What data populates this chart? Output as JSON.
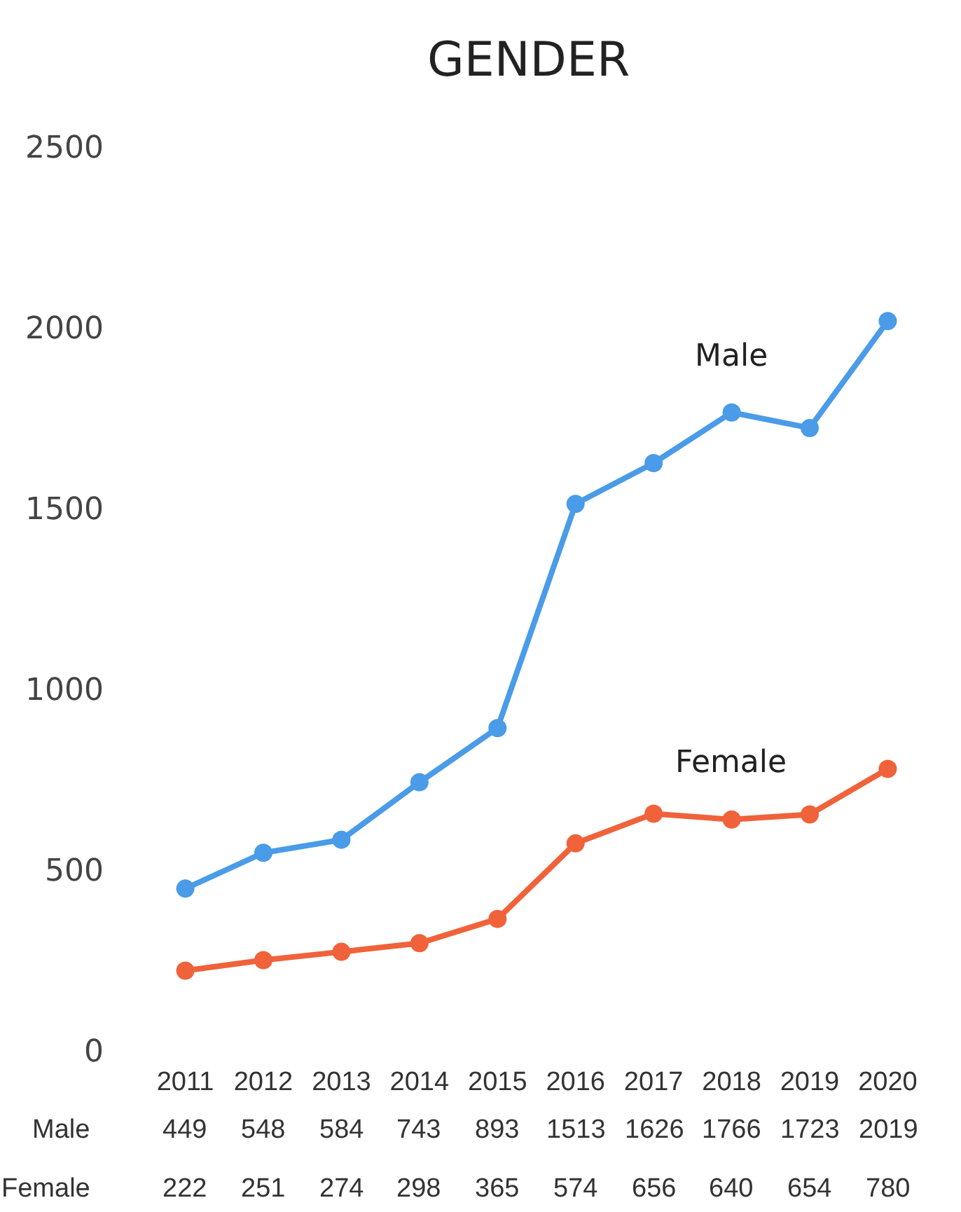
{
  "chart_data": {
    "type": "line",
    "title": "GENDER",
    "categories": [
      "2011",
      "2012",
      "2013",
      "2014",
      "2015",
      "2016",
      "2017",
      "2018",
      "2019",
      "2020"
    ],
    "series": [
      {
        "name": "Male",
        "color": "#4a9be8",
        "values": [
          449,
          548,
          584,
          743,
          893,
          1513,
          1626,
          1766,
          1723,
          2019
        ]
      },
      {
        "name": "Female",
        "color": "#f0623a",
        "values": [
          222,
          251,
          274,
          298,
          365,
          574,
          656,
          640,
          654,
          780
        ]
      }
    ],
    "ylim": [
      0,
      2500
    ],
    "yticks": [
      0,
      500,
      1000,
      1500,
      2000,
      2500
    ],
    "marker": "circle",
    "line_style": "solid",
    "legend": false,
    "data_labels": true
  }
}
